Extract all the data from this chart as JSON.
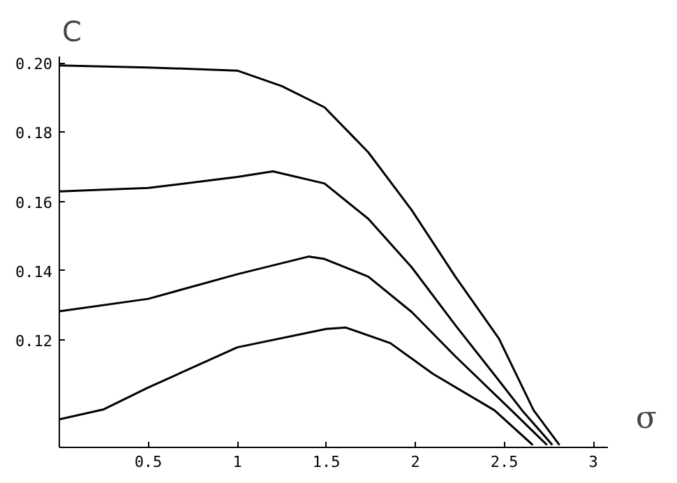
{
  "chart_data": {
    "type": "line",
    "xlabel": "σ",
    "ylabel": "C",
    "xlim": [
      0,
      3.08
    ],
    "ylim": [
      0.089,
      0.202
    ],
    "xticks": [
      0.5,
      1,
      1.5,
      2,
      2.5,
      3
    ],
    "yticks": [
      0.12,
      0.14,
      0.16,
      0.18,
      {
        "value": 0.2,
        "label": "0.20"
      }
    ],
    "grid": false,
    "marker": "none",
    "line_style": "solid",
    "series": [
      {
        "color": "#000000",
        "x": [
          0,
          0.5,
          1,
          1.25,
          1.49,
          1.736,
          1.98,
          2.225,
          2.47,
          2.665,
          2.81
        ],
        "values": [
          0.1993,
          0.1987,
          0.1978,
          0.1933,
          0.1872,
          0.1742,
          0.1575,
          0.1383,
          0.1204,
          0.0997,
          0.0897
        ]
      },
      {
        "color": "#000000",
        "x": [
          0,
          0.5,
          1,
          1.2,
          1.49,
          1.736,
          1.98,
          2.225,
          2.47,
          2.6,
          2.77
        ],
        "values": [
          0.1629,
          0.1639,
          0.1671,
          0.1687,
          0.1652,
          0.155,
          0.141,
          0.1243,
          0.1083,
          0.0997,
          0.0897
        ]
      },
      {
        "color": "#000000",
        "x": [
          0,
          0.5,
          1,
          1.4,
          1.49,
          1.736,
          1.98,
          2.225,
          2.54,
          2.74
        ],
        "values": [
          0.1283,
          0.1319,
          0.139,
          0.1441,
          0.1434,
          0.1383,
          0.1281,
          0.1153,
          0.0997,
          0.0897
        ]
      },
      {
        "color": "#000000",
        "x": [
          0,
          0.25,
          0.5,
          1,
          1.5,
          1.61,
          1.86,
          2.1,
          2.445,
          2.66
        ],
        "values": [
          0.0971,
          0.1,
          0.1063,
          0.1179,
          0.1232,
          0.1236,
          0.1191,
          0.1102,
          0.0997,
          0.0897
        ]
      }
    ]
  }
}
